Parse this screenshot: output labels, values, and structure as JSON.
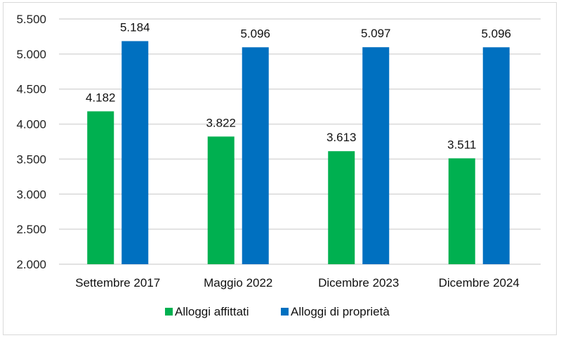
{
  "chart_data": {
    "type": "bar",
    "title": "",
    "xlabel": "",
    "ylabel": "",
    "categories": [
      "Settembre 2017",
      "Maggio 2022",
      "Dicembre 2023",
      "Dicembre 2024"
    ],
    "series": [
      {
        "name": "Alloggi affittati",
        "color": "#00b050",
        "values": [
          4182,
          3822,
          3613,
          3511
        ],
        "labels": [
          "4.182",
          "3.822",
          "3.613",
          "3.511"
        ]
      },
      {
        "name": "Alloggi di proprietà",
        "color": "#0070c0",
        "values": [
          5184,
          5096,
          5097,
          5096
        ],
        "labels": [
          "5.184",
          "5.096",
          "5.097",
          "5.096"
        ]
      }
    ],
    "ylim": [
      2000,
      5500
    ],
    "yticks": [
      2000,
      2500,
      3000,
      3500,
      4000,
      4500,
      5000,
      5500
    ],
    "ytick_labels": [
      "2.000",
      "2.500",
      "3.000",
      "3.500",
      "4.000",
      "4.500",
      "5.000",
      "5.500"
    ],
    "grid": true,
    "legend_position": "bottom"
  }
}
